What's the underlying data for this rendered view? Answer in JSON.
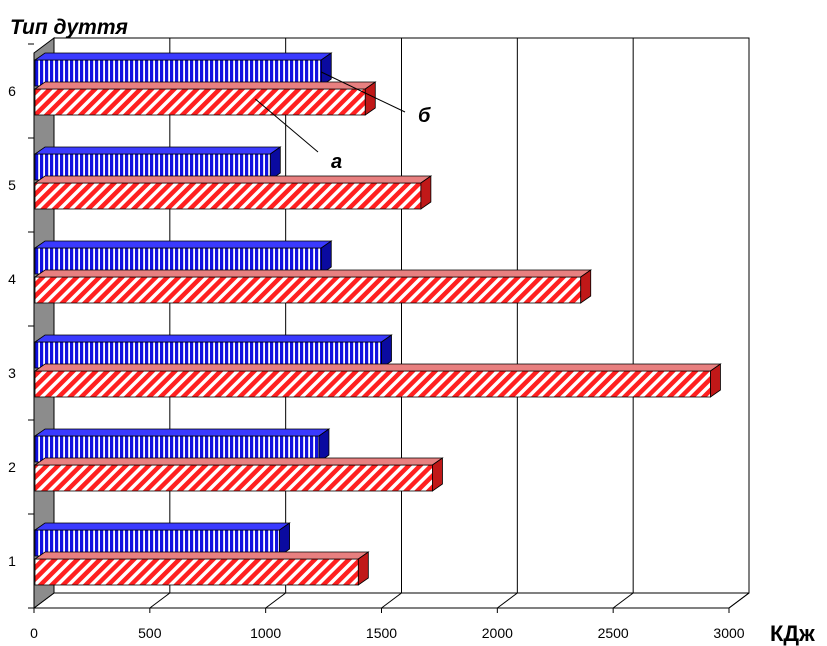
{
  "chart_data": {
    "type": "bar",
    "orientation": "horizontal",
    "style": "3d",
    "title": "",
    "ylabel": "Тип дуття",
    "xlabel": "КДж",
    "categories": [
      "1",
      "2",
      "3",
      "4",
      "5",
      "6"
    ],
    "xlim": [
      0,
      3000
    ],
    "xticks": [
      0,
      500,
      1000,
      1500,
      2000,
      2500,
      3000
    ],
    "xtick_labels": [
      "0",
      "500",
      "1000",
      "1500",
      "2000",
      "2500",
      "3000"
    ],
    "grid": "vertical",
    "series": [
      {
        "name": "а",
        "color": "#ff2020",
        "pattern": "diagonal-hatch",
        "values": [
          1400,
          1720,
          2920,
          2360,
          1670,
          1430
        ]
      },
      {
        "name": "б",
        "color": "#1010e0",
        "pattern": "vertical-stripes",
        "values": [
          1060,
          1230,
          1500,
          1240,
          1020,
          1240
        ]
      }
    ],
    "annotations": [
      {
        "text": "б",
        "series": "б",
        "category": "6"
      },
      {
        "text": "а",
        "series": "а",
        "category": "6"
      }
    ]
  }
}
